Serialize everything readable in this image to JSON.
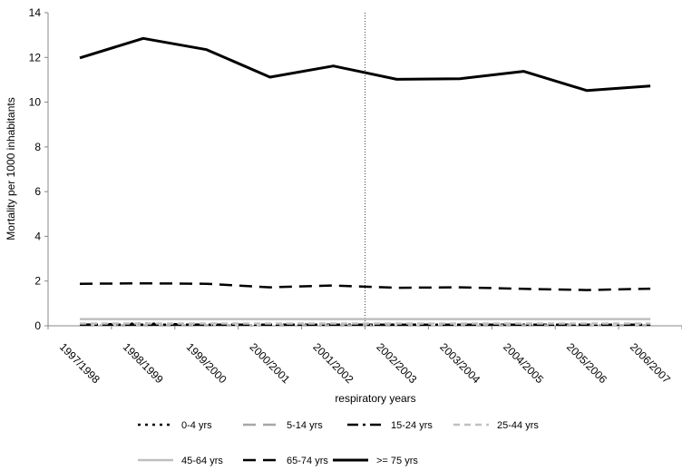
{
  "chart_data": {
    "type": "line",
    "xlabel": "respiratory years",
    "ylabel": "Mortality per 1000 inhabitants",
    "ylim": [
      0,
      14
    ],
    "yticks": [
      0,
      2,
      4,
      6,
      8,
      10,
      12,
      14
    ],
    "grid": false,
    "legend_position": "bottom",
    "categories": [
      "1997/1998",
      "1998/1999",
      "1999/2000",
      "2000/2001",
      "2001/2002",
      "2002/2003",
      "2003/2004",
      "2004/2005",
      "2005/2006",
      "2006/2007"
    ],
    "reference_line_between": [
      "2001/2002",
      "2002/2003"
    ],
    "series": [
      {
        "name": "0-4 yrs",
        "values": [
          0.05,
          0.1,
          0.05,
          0.05,
          0.05,
          0.05,
          0.05,
          0.05,
          0.05,
          0.05
        ],
        "color": "#000000",
        "style": "dotted"
      },
      {
        "name": "5-14 yrs",
        "values": [
          0.02,
          0.02,
          0.02,
          0.02,
          0.02,
          0.02,
          0.02,
          0.02,
          0.02,
          0.02
        ],
        "color": "#a6a6a6",
        "style": "long-dash"
      },
      {
        "name": "15-24 yrs",
        "values": [
          0.05,
          0.05,
          0.05,
          0.05,
          0.05,
          0.05,
          0.05,
          0.05,
          0.05,
          0.05
        ],
        "color": "#000000",
        "style": "dash-dot"
      },
      {
        "name": "25-44 yrs",
        "values": [
          0.1,
          0.1,
          0.1,
          0.1,
          0.1,
          0.1,
          0.1,
          0.1,
          0.1,
          0.1
        ],
        "color": "#c0c0c0",
        "style": "dashed"
      },
      {
        "name": "45-64 yrs",
        "values": [
          0.3,
          0.3,
          0.3,
          0.3,
          0.3,
          0.3,
          0.3,
          0.3,
          0.3,
          0.3
        ],
        "color": "#bfbfbf",
        "style": "solid"
      },
      {
        "name": "65-74 yrs",
        "values": [
          1.88,
          1.9,
          1.88,
          1.72,
          1.8,
          1.7,
          1.72,
          1.65,
          1.6,
          1.66
        ],
        "color": "#000000",
        "style": "long-dash"
      },
      {
        "name": ">= 75 yrs",
        "values": [
          11.98,
          12.85,
          12.35,
          11.12,
          11.62,
          11.02,
          11.05,
          11.38,
          10.52,
          10.72
        ],
        "color": "#000000",
        "style": "solid"
      }
    ]
  }
}
